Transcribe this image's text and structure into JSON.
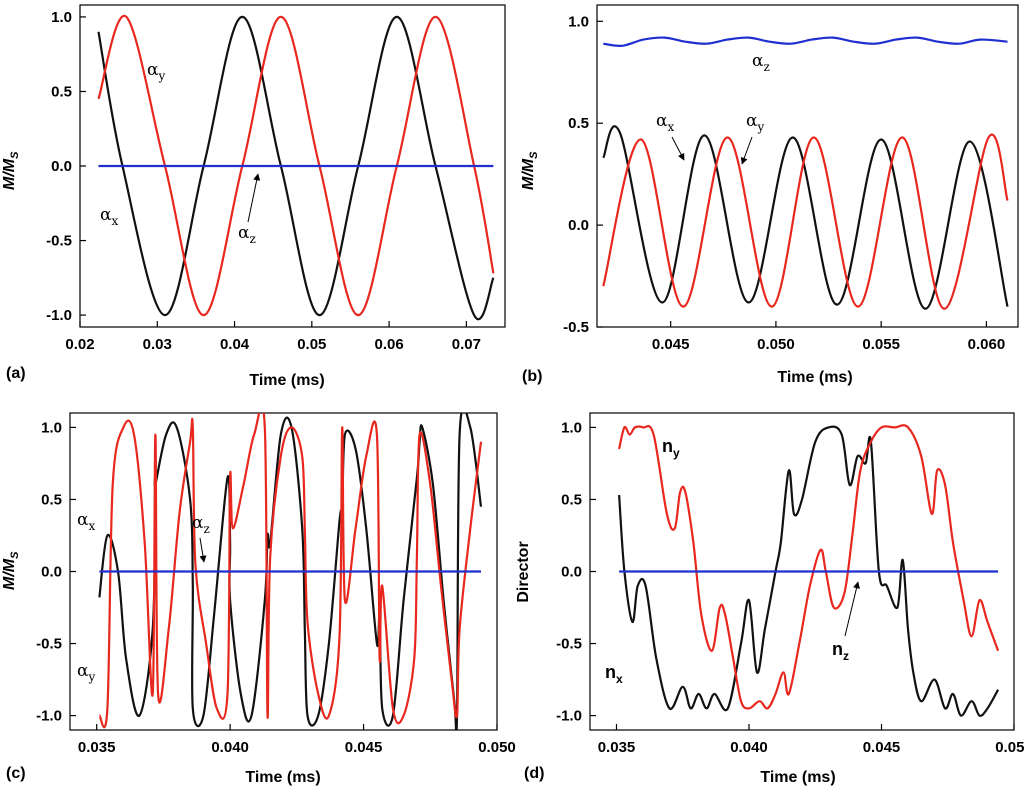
{
  "colors": {
    "black": "#111111",
    "red": "#e8281e",
    "blue": "#1f2fd0"
  },
  "chart_data": [
    {
      "panel": "(a)",
      "type": "line",
      "xlabel": "Time  (ms)",
      "ylabel": "M/M",
      "ylabel_sub": "S",
      "xlim": [
        0.02,
        0.075
      ],
      "ylim": [
        -1.08,
        1.08
      ],
      "xticks": [
        "0.02",
        "0.03",
        "0.04",
        "0.05",
        "0.06",
        "0.07"
      ],
      "yticks": [
        "1.0",
        "0.5",
        "0.0",
        "-0.5",
        "-1.0"
      ],
      "series": [
        {
          "name": "α_x",
          "color": "black",
          "x": [
            0.0224,
            0.0255,
            0.031,
            0.036,
            0.041,
            0.046,
            0.051,
            0.056,
            0.061,
            0.066,
            0.071,
            0.0735
          ],
          "y": [
            0.9,
            0.0,
            -1.0,
            0.0,
            1.0,
            0.0,
            -1.0,
            0.0,
            1.0,
            0.0,
            -1.0,
            -0.75
          ]
        },
        {
          "name": "α_y",
          "color": "red",
          "x": [
            0.0224,
            0.026,
            0.031,
            0.036,
            0.041,
            0.046,
            0.051,
            0.056,
            0.061,
            0.066,
            0.071,
            0.0735
          ],
          "y": [
            0.45,
            1.0,
            0.0,
            -1.0,
            0.0,
            1.0,
            0.0,
            -1.0,
            0.0,
            1.0,
            0.0,
            -0.72
          ]
        },
        {
          "name": "α_z",
          "color": "blue",
          "x": [
            0.0224,
            0.0735
          ],
          "y": [
            0.0,
            0.0
          ]
        }
      ],
      "annotations": [
        {
          "text": "α",
          "sub": "y"
        },
        {
          "text": "α",
          "sub": "x"
        },
        {
          "text": "α",
          "sub": "z"
        }
      ]
    },
    {
      "panel": "(b)",
      "type": "line",
      "xlabel": "Time  (ms)",
      "ylabel": "M/M",
      "ylabel_sub": "S",
      "xlim": [
        0.0415,
        0.0615
      ],
      "ylim": [
        -0.5,
        1.08
      ],
      "xticks": [
        "0.045",
        "0.050",
        "0.055",
        "0.060"
      ],
      "yticks": [
        "1.0",
        "0.5",
        "0.0",
        "-0.5"
      ],
      "series": [
        {
          "name": "α_x",
          "color": "black",
          "x": [
            0.0418,
            0.0426,
            0.0446,
            0.0466,
            0.0487,
            0.0508,
            0.0529,
            0.055,
            0.0571,
            0.0592,
            0.061
          ],
          "y": [
            0.33,
            0.45,
            -0.38,
            0.44,
            -0.38,
            0.43,
            -0.39,
            0.42,
            -0.41,
            0.41,
            -0.4
          ]
        },
        {
          "name": "α_y",
          "color": "red",
          "x": [
            0.0418,
            0.0436,
            0.0456,
            0.0477,
            0.0498,
            0.0518,
            0.0539,
            0.056,
            0.058,
            0.0601,
            0.061
          ],
          "y": [
            -0.3,
            0.42,
            -0.4,
            0.43,
            -0.4,
            0.43,
            -0.4,
            0.43,
            -0.41,
            0.43,
            0.12
          ]
        },
        {
          "name": "α_z",
          "color": "blue",
          "x": [
            0.0418,
            0.0427,
            0.0437,
            0.0447,
            0.0457,
            0.0467,
            0.0477,
            0.0487,
            0.0497,
            0.0507,
            0.0517,
            0.0527,
            0.0537,
            0.0547,
            0.0557,
            0.0567,
            0.0577,
            0.0587,
            0.0597,
            0.061
          ],
          "y": [
            0.89,
            0.88,
            0.91,
            0.92,
            0.9,
            0.89,
            0.91,
            0.92,
            0.9,
            0.89,
            0.91,
            0.92,
            0.9,
            0.89,
            0.91,
            0.92,
            0.9,
            0.89,
            0.91,
            0.9
          ]
        }
      ],
      "annotations": [
        {
          "text": "α",
          "sub": "z"
        },
        {
          "text": "α",
          "sub": "x"
        },
        {
          "text": "α",
          "sub": "y"
        }
      ]
    },
    {
      "panel": "(c)",
      "type": "line",
      "xlabel": "Time  (ms)",
      "ylabel": "M/M",
      "ylabel_sub": "S",
      "xlim": [
        0.034,
        0.05
      ],
      "ylim": [
        -1.1,
        1.1
      ],
      "xticks": [
        "0.035",
        "0.040",
        "0.045",
        "0.050"
      ],
      "yticks": [
        "1.0",
        "0.5",
        "0.0",
        "-0.5",
        "-1.0"
      ],
      "series": [
        {
          "name": "α_x",
          "color": "black",
          "x": [
            0.0351,
            0.0354,
            0.0358,
            0.0361,
            0.0366,
            0.0371,
            0.0372,
            0.0372,
            0.0376,
            0.038,
            0.0385,
            0.0386,
            0.0386,
            0.039,
            0.0394,
            0.0399,
            0.04,
            0.04,
            0.0404,
            0.0408,
            0.0413,
            0.0414,
            0.0415,
            0.0419,
            0.0423,
            0.0427,
            0.0428,
            0.0429,
            0.0433,
            0.0437,
            0.0441,
            0.0442,
            0.0443,
            0.0447,
            0.0451,
            0.0455,
            0.0456,
            0.0457,
            0.0461,
            0.0465,
            0.047,
            0.0471,
            0.0472,
            0.0476,
            0.048,
            0.0484,
            0.0485,
            0.0486,
            0.049,
            0.0494
          ],
          "y": [
            -0.18,
            0.25,
            0.0,
            -0.6,
            -1.0,
            -0.4,
            0.6,
            0.6,
            0.95,
            1.0,
            0.5,
            -0.1,
            -0.95,
            -1.0,
            -0.3,
            0.65,
            0.2,
            -0.2,
            -0.85,
            -1.0,
            -0.2,
            0.25,
            0.2,
            0.95,
            1.0,
            0.3,
            -0.4,
            -1.0,
            -1.0,
            -0.5,
            0.35,
            0.45,
            0.95,
            0.85,
            0.3,
            -0.5,
            -0.3,
            -0.95,
            -1.0,
            -0.2,
            0.65,
            0.9,
            1.0,
            0.6,
            -0.2,
            -0.9,
            -1.0,
            0.95,
            1.0,
            0.45
          ]
        },
        {
          "name": "α_y",
          "color": "red",
          "x": [
            0.0351,
            0.0354,
            0.0356,
            0.036,
            0.0364,
            0.0368,
            0.0371,
            0.0372,
            0.0373,
            0.0377,
            0.0381,
            0.0385,
            0.0386,
            0.0387,
            0.0391,
            0.0395,
            0.0399,
            0.04,
            0.0401,
            0.0405,
            0.0409,
            0.0413,
            0.0414,
            0.0415,
            0.0419,
            0.0423,
            0.0427,
            0.0428,
            0.0429,
            0.0433,
            0.0437,
            0.0441,
            0.0442,
            0.0443,
            0.0447,
            0.0451,
            0.0455,
            0.0456,
            0.0457,
            0.0461,
            0.0465,
            0.0469,
            0.047,
            0.0471,
            0.0475,
            0.0479,
            0.0483,
            0.0485,
            0.0486,
            0.049,
            0.0494
          ],
          "y": [
            -1.0,
            -0.95,
            0.6,
            1.0,
            0.95,
            0.2,
            -0.85,
            0.95,
            -0.85,
            -0.4,
            0.4,
            0.9,
            1.0,
            0.05,
            -0.5,
            -0.95,
            -0.85,
            0.65,
            0.3,
            0.6,
            0.95,
            1.0,
            -1.0,
            0.1,
            0.8,
            1.0,
            0.8,
            0.3,
            -0.35,
            -0.85,
            -1.0,
            -0.45,
            1.0,
            -0.2,
            0.3,
            0.8,
            0.95,
            -0.6,
            -0.1,
            -0.95,
            -1.0,
            -0.6,
            0.1,
            0.95,
            0.6,
            -0.1,
            -0.75,
            -1.0,
            -0.4,
            0.3,
            0.9
          ]
        },
        {
          "name": "α_z",
          "color": "blue",
          "x": [
            0.0351,
            0.0494
          ],
          "y": [
            0.0,
            0.0
          ]
        }
      ],
      "annotations": [
        {
          "text": "α",
          "sub": "x"
        },
        {
          "text": "α",
          "sub": "z"
        },
        {
          "text": "α",
          "sub": "y"
        }
      ]
    },
    {
      "panel": "(d)",
      "type": "line",
      "xlabel": "Time  (ms)",
      "ylabel": "Director",
      "xlim": [
        0.034,
        0.05
      ],
      "ylim": [
        -1.1,
        1.1
      ],
      "xticks": [
        "0.035",
        "0.040",
        "0.045",
        "0.050"
      ],
      "yticks": [
        "1.0",
        "0.5",
        "0.0",
        "-0.5",
        "-1.0"
      ],
      "series": [
        {
          "name": "n_x",
          "color": "black",
          "x": [
            0.0351,
            0.0353,
            0.0356,
            0.0358,
            0.0361,
            0.0365,
            0.037,
            0.0375,
            0.0378,
            0.0381,
            0.0384,
            0.0387,
            0.0392,
            0.0397,
            0.04,
            0.0403,
            0.0406,
            0.041,
            0.0412,
            0.0415,
            0.0417,
            0.042,
            0.0425,
            0.043,
            0.0435,
            0.0438,
            0.0441,
            0.0444,
            0.0446,
            0.0449,
            0.0452,
            0.0456,
            0.0458,
            0.046,
            0.0462,
            0.0465,
            0.047,
            0.0474,
            0.0477,
            0.048,
            0.0484,
            0.0487,
            0.049,
            0.0494
          ],
          "y": [
            0.53,
            0.0,
            -0.35,
            -0.1,
            -0.1,
            -0.6,
            -0.95,
            -0.8,
            -0.95,
            -0.85,
            -0.95,
            -0.85,
            -0.95,
            -0.5,
            -0.2,
            -0.7,
            -0.4,
            0.0,
            0.2,
            0.7,
            0.4,
            0.5,
            0.9,
            1.0,
            0.95,
            0.6,
            0.8,
            0.75,
            0.9,
            0.0,
            -0.1,
            -0.25,
            0.08,
            -0.4,
            -0.7,
            -0.9,
            -0.75,
            -0.95,
            -0.85,
            -1.0,
            -0.9,
            -1.0,
            -0.95,
            -0.82
          ]
        },
        {
          "name": "n_y",
          "color": "red",
          "x": [
            0.0351,
            0.0353,
            0.0355,
            0.0357,
            0.036,
            0.0364,
            0.0369,
            0.0372,
            0.0374,
            0.0376,
            0.0379,
            0.0382,
            0.0386,
            0.0389,
            0.0391,
            0.0394,
            0.0397,
            0.04,
            0.0404,
            0.0407,
            0.041,
            0.0413,
            0.0415,
            0.0419,
            0.0423,
            0.0427,
            0.0429,
            0.0432,
            0.0436,
            0.0439,
            0.0442,
            0.0446,
            0.045,
            0.0455,
            0.046,
            0.0465,
            0.0469,
            0.0471,
            0.0474,
            0.0477,
            0.0481,
            0.0484,
            0.0487,
            0.049,
            0.0494
          ],
          "y": [
            0.85,
            1.0,
            0.95,
            1.0,
            1.0,
            0.95,
            0.4,
            0.3,
            0.55,
            0.55,
            0.2,
            -0.3,
            -0.55,
            -0.25,
            -0.3,
            -0.6,
            -0.9,
            -0.95,
            -0.9,
            -0.95,
            -0.85,
            -0.7,
            -0.85,
            -0.5,
            -0.1,
            0.15,
            0.0,
            -0.25,
            -0.15,
            0.25,
            0.7,
            0.9,
            1.0,
            1.0,
            1.0,
            0.8,
            0.4,
            0.7,
            0.6,
            0.2,
            -0.2,
            -0.45,
            -0.2,
            -0.35,
            -0.55
          ]
        },
        {
          "name": "n_z",
          "color": "blue",
          "x": [
            0.0351,
            0.0494
          ],
          "y": [
            0.0,
            0.0
          ]
        }
      ],
      "annotations": [
        {
          "text": "n",
          "sub": "y"
        },
        {
          "text": "n",
          "sub": "x"
        },
        {
          "text": "n",
          "sub": "z"
        }
      ]
    }
  ]
}
